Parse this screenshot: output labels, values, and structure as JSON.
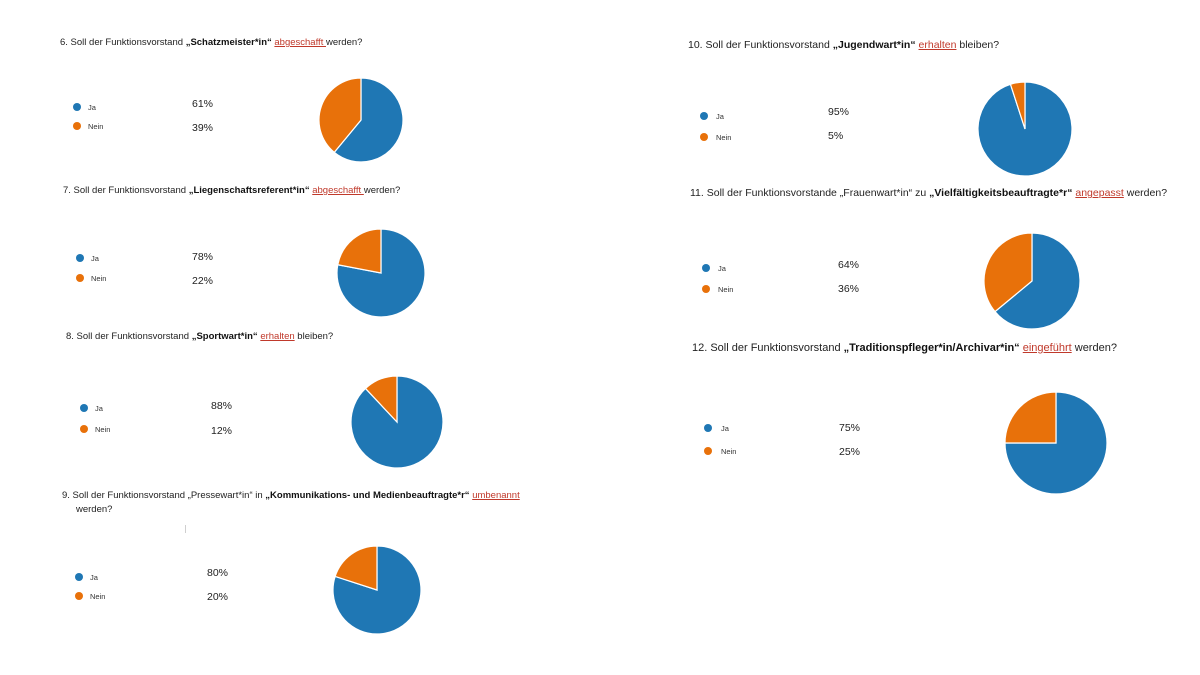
{
  "colors": {
    "ja": "#1f77b4",
    "nein": "#e8710a",
    "keyword": "#c0392b"
  },
  "legend_labels": {
    "ja": "Ja",
    "nein": "Nein"
  },
  "questions": [
    {
      "prefix": "6.  Soll der Funktionsvorstand ",
      "bold": "„Schatzmeister*in“",
      "middle": " ",
      "keyword": "abgeschafft ",
      "suffix": "werden?",
      "line2": "",
      "ja_pct": "61%",
      "nein_pct": "39%"
    },
    {
      "prefix": "7.  Soll der Funktionsvorstand ",
      "bold": "„Liegenschaftsreferent*in“",
      "middle": " ",
      "keyword": "abgeschafft ",
      "suffix": "werden?",
      "line2": "",
      "ja_pct": "78%",
      "nein_pct": "22%"
    },
    {
      "prefix": "8.  Soll der Funktionsvorstand ",
      "bold": "„Sportwart*in“",
      "middle": " ",
      "keyword": "erhalten",
      "suffix": " bleiben?",
      "line2": "",
      "ja_pct": "88%",
      "nein_pct": "12%"
    },
    {
      "prefix": "9.  Soll der Funktionsvorstand „Pressewart*in“ in ",
      "bold": "„Kommunikations- und Medienbeauftragte*r“",
      "middle": " ",
      "keyword": "umbenannt",
      "suffix": "",
      "line2": "werden?",
      "ja_pct": "80%",
      "nein_pct": "20%"
    },
    {
      "prefix": "10.  Soll der Funktionsvorstand ",
      "bold": "„Jugendwart*in“",
      "middle": " ",
      "keyword": "erhalten",
      "suffix": " bleiben?",
      "line2": "",
      "ja_pct": "95%",
      "nein_pct": "5%"
    },
    {
      "prefix": "11.  Soll der Funktionsvorstande „Frauenwart*in“ zu ",
      "bold": "„Vielfältigkeitsbeauftragte*r“",
      "middle": " ",
      "keyword": "angepasst",
      "suffix": " werden?",
      "line2": "",
      "ja_pct": "64%",
      "nein_pct": "36%"
    },
    {
      "prefix": "12.  Soll der Funktionsvorstand ",
      "bold": "„Traditionspfleger*in/Archivar*in“",
      "middle": " ",
      "keyword": "eingeführt",
      "suffix": " werden?",
      "line2": "",
      "ja_pct": "75%",
      "nein_pct": "25%"
    }
  ],
  "chart_data": [
    {
      "type": "pie",
      "categories": [
        "Ja",
        "Nein"
      ],
      "values": [
        61,
        39
      ]
    },
    {
      "type": "pie",
      "categories": [
        "Ja",
        "Nein"
      ],
      "values": [
        78,
        22
      ]
    },
    {
      "type": "pie",
      "categories": [
        "Ja",
        "Nein"
      ],
      "values": [
        88,
        12
      ]
    },
    {
      "type": "pie",
      "categories": [
        "Ja",
        "Nein"
      ],
      "values": [
        80,
        20
      ]
    },
    {
      "type": "pie",
      "categories": [
        "Ja",
        "Nein"
      ],
      "values": [
        95,
        5
      ]
    },
    {
      "type": "pie",
      "categories": [
        "Ja",
        "Nein"
      ],
      "values": [
        64,
        36
      ]
    },
    {
      "type": "pie",
      "categories": [
        "Ja",
        "Nein"
      ],
      "values": [
        75,
        25
      ]
    }
  ]
}
